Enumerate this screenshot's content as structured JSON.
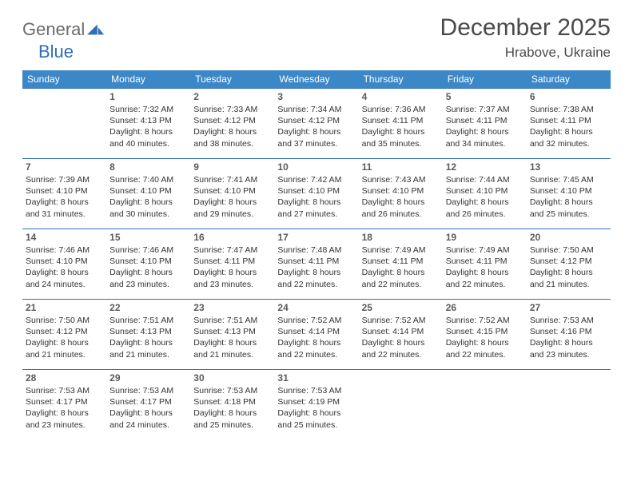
{
  "logo": {
    "word1": "General",
    "word2": "Blue"
  },
  "title": "December 2025",
  "location": "Hrabove, Ukraine",
  "colors": {
    "header_bg": "#3b87c8",
    "row_border": "#2f6fb3",
    "logo_gray": "#6b6b6b",
    "logo_blue": "#2f6fb3",
    "text_dark": "#4a4a4a"
  },
  "day_headers": [
    "Sunday",
    "Monday",
    "Tuesday",
    "Wednesday",
    "Thursday",
    "Friday",
    "Saturday"
  ],
  "weeks": [
    [
      null,
      {
        "n": "1",
        "sr": "7:32 AM",
        "ss": "4:13 PM",
        "dl": "8 hours and 40 minutes."
      },
      {
        "n": "2",
        "sr": "7:33 AM",
        "ss": "4:12 PM",
        "dl": "8 hours and 38 minutes."
      },
      {
        "n": "3",
        "sr": "7:34 AM",
        "ss": "4:12 PM",
        "dl": "8 hours and 37 minutes."
      },
      {
        "n": "4",
        "sr": "7:36 AM",
        "ss": "4:11 PM",
        "dl": "8 hours and 35 minutes."
      },
      {
        "n": "5",
        "sr": "7:37 AM",
        "ss": "4:11 PM",
        "dl": "8 hours and 34 minutes."
      },
      {
        "n": "6",
        "sr": "7:38 AM",
        "ss": "4:11 PM",
        "dl": "8 hours and 32 minutes."
      }
    ],
    [
      {
        "n": "7",
        "sr": "7:39 AM",
        "ss": "4:10 PM",
        "dl": "8 hours and 31 minutes."
      },
      {
        "n": "8",
        "sr": "7:40 AM",
        "ss": "4:10 PM",
        "dl": "8 hours and 30 minutes."
      },
      {
        "n": "9",
        "sr": "7:41 AM",
        "ss": "4:10 PM",
        "dl": "8 hours and 29 minutes."
      },
      {
        "n": "10",
        "sr": "7:42 AM",
        "ss": "4:10 PM",
        "dl": "8 hours and 27 minutes."
      },
      {
        "n": "11",
        "sr": "7:43 AM",
        "ss": "4:10 PM",
        "dl": "8 hours and 26 minutes."
      },
      {
        "n": "12",
        "sr": "7:44 AM",
        "ss": "4:10 PM",
        "dl": "8 hours and 26 minutes."
      },
      {
        "n": "13",
        "sr": "7:45 AM",
        "ss": "4:10 PM",
        "dl": "8 hours and 25 minutes."
      }
    ],
    [
      {
        "n": "14",
        "sr": "7:46 AM",
        "ss": "4:10 PM",
        "dl": "8 hours and 24 minutes."
      },
      {
        "n": "15",
        "sr": "7:46 AM",
        "ss": "4:10 PM",
        "dl": "8 hours and 23 minutes."
      },
      {
        "n": "16",
        "sr": "7:47 AM",
        "ss": "4:11 PM",
        "dl": "8 hours and 23 minutes."
      },
      {
        "n": "17",
        "sr": "7:48 AM",
        "ss": "4:11 PM",
        "dl": "8 hours and 22 minutes."
      },
      {
        "n": "18",
        "sr": "7:49 AM",
        "ss": "4:11 PM",
        "dl": "8 hours and 22 minutes."
      },
      {
        "n": "19",
        "sr": "7:49 AM",
        "ss": "4:11 PM",
        "dl": "8 hours and 22 minutes."
      },
      {
        "n": "20",
        "sr": "7:50 AM",
        "ss": "4:12 PM",
        "dl": "8 hours and 21 minutes."
      }
    ],
    [
      {
        "n": "21",
        "sr": "7:50 AM",
        "ss": "4:12 PM",
        "dl": "8 hours and 21 minutes."
      },
      {
        "n": "22",
        "sr": "7:51 AM",
        "ss": "4:13 PM",
        "dl": "8 hours and 21 minutes."
      },
      {
        "n": "23",
        "sr": "7:51 AM",
        "ss": "4:13 PM",
        "dl": "8 hours and 21 minutes."
      },
      {
        "n": "24",
        "sr": "7:52 AM",
        "ss": "4:14 PM",
        "dl": "8 hours and 22 minutes."
      },
      {
        "n": "25",
        "sr": "7:52 AM",
        "ss": "4:14 PM",
        "dl": "8 hours and 22 minutes."
      },
      {
        "n": "26",
        "sr": "7:52 AM",
        "ss": "4:15 PM",
        "dl": "8 hours and 22 minutes."
      },
      {
        "n": "27",
        "sr": "7:53 AM",
        "ss": "4:16 PM",
        "dl": "8 hours and 23 minutes."
      }
    ],
    [
      {
        "n": "28",
        "sr": "7:53 AM",
        "ss": "4:17 PM",
        "dl": "8 hours and 23 minutes."
      },
      {
        "n": "29",
        "sr": "7:53 AM",
        "ss": "4:17 PM",
        "dl": "8 hours and 24 minutes."
      },
      {
        "n": "30",
        "sr": "7:53 AM",
        "ss": "4:18 PM",
        "dl": "8 hours and 25 minutes."
      },
      {
        "n": "31",
        "sr": "7:53 AM",
        "ss": "4:19 PM",
        "dl": "8 hours and 25 minutes."
      },
      null,
      null,
      null
    ]
  ],
  "labels": {
    "sunrise": "Sunrise:",
    "sunset": "Sunset:",
    "daylight": "Daylight:"
  }
}
